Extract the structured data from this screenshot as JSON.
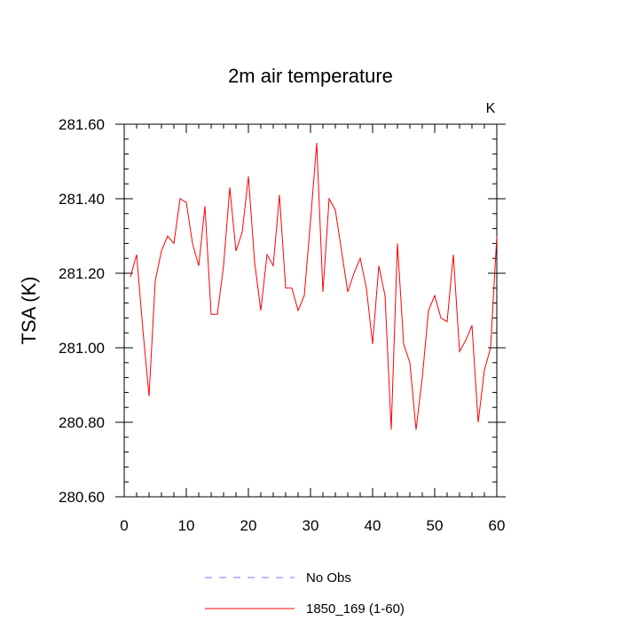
{
  "chart_data": {
    "type": "line",
    "title": "2m air temperature",
    "units_label": "K",
    "xlabel": "",
    "ylabel": "TSA  (K)",
    "xlim": [
      0,
      60
    ],
    "ylim": [
      280.6,
      281.6
    ],
    "x_ticks": [
      0,
      10,
      20,
      30,
      40,
      50,
      60
    ],
    "x_tick_labels": [
      "0",
      "10",
      "20",
      "30",
      "40",
      "50",
      "60"
    ],
    "y_ticks": [
      280.6,
      280.8,
      281.0,
      281.2,
      281.4,
      281.6
    ],
    "y_tick_labels": [
      "280.60",
      "280.80",
      "281.00",
      "281.20",
      "281.40",
      "281.60"
    ],
    "grid": false,
    "legend_position": "bottom-center",
    "series": [
      {
        "name": "No Obs",
        "color": "#7777ff",
        "dash": true,
        "x": [],
        "values": []
      },
      {
        "name": "1850_169 (1-60)",
        "color": "#ff0000",
        "dash": false,
        "x": [
          1,
          2,
          3,
          4,
          5,
          6,
          7,
          8,
          9,
          10,
          11,
          12,
          13,
          14,
          15,
          16,
          17,
          18,
          19,
          20,
          21,
          22,
          23,
          24,
          25,
          26,
          27,
          28,
          29,
          30,
          31,
          32,
          33,
          34,
          35,
          36,
          37,
          38,
          39,
          40,
          41,
          42,
          43,
          44,
          45,
          46,
          47,
          48,
          49,
          50,
          51,
          52,
          53,
          54,
          55,
          56,
          57,
          58,
          59,
          60
        ],
        "values": [
          281.19,
          281.25,
          281.05,
          280.87,
          281.18,
          281.26,
          281.3,
          281.28,
          281.4,
          281.39,
          281.28,
          281.22,
          281.38,
          281.09,
          281.09,
          281.22,
          281.43,
          281.26,
          281.31,
          281.46,
          281.23,
          281.1,
          281.25,
          281.22,
          281.41,
          281.16,
          281.16,
          281.1,
          281.14,
          281.34,
          281.55,
          281.15,
          281.4,
          281.37,
          281.26,
          281.15,
          281.2,
          281.24,
          281.16,
          281.01,
          281.22,
          281.14,
          280.78,
          281.28,
          281.01,
          280.96,
          280.78,
          280.92,
          281.1,
          281.14,
          281.08,
          281.07,
          281.25,
          280.99,
          281.02,
          281.06,
          280.8,
          280.94,
          281.0,
          281.3
        ]
      }
    ]
  }
}
